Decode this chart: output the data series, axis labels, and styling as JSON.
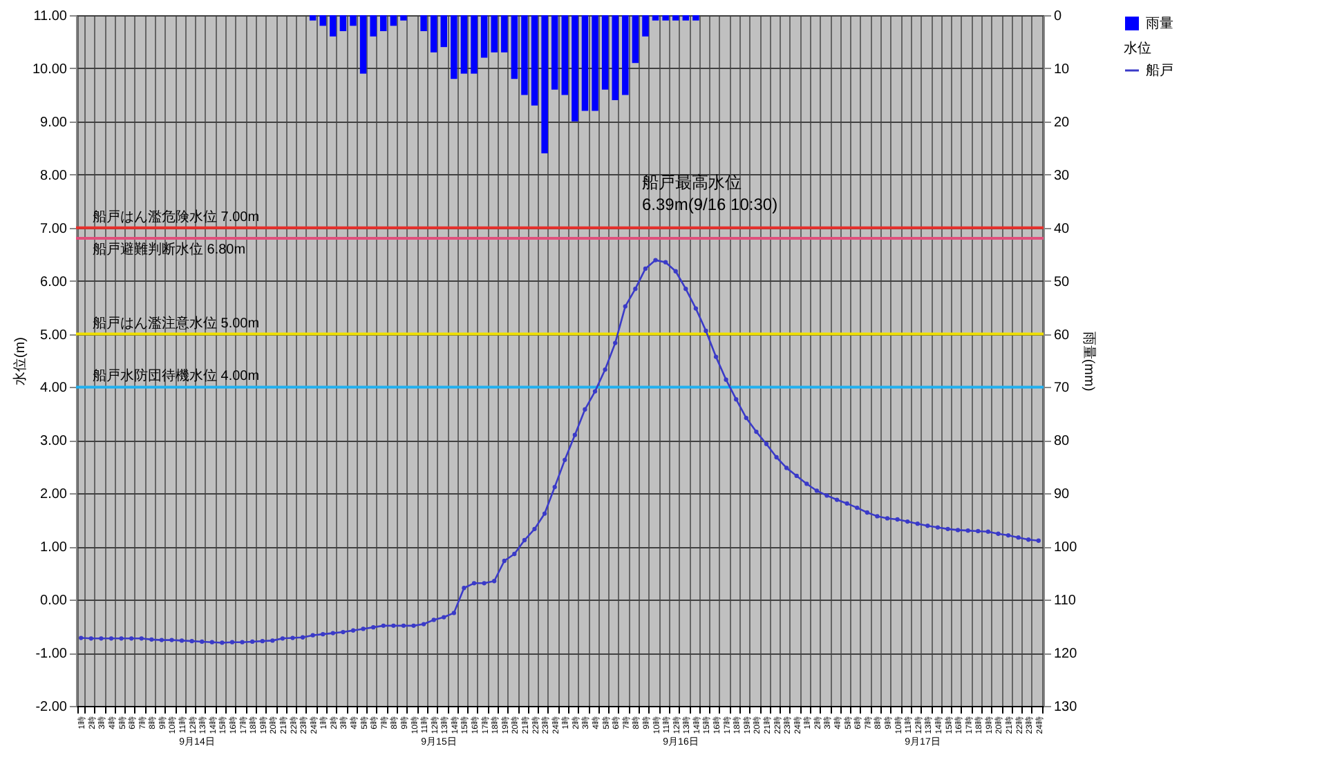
{
  "chart_data": {
    "type": "line",
    "xlabel": null,
    "ylabel": "水位(m)",
    "y2label": "雨量(mm)",
    "legend_title": "水位",
    "categories": [
      "1時",
      "2時",
      "3時",
      "4時",
      "5時",
      "6時",
      "7時",
      "8時",
      "9時",
      "10時",
      "11時",
      "12時",
      "13時",
      "14時",
      "15時",
      "16時",
      "17時",
      "18時",
      "19時",
      "20時",
      "21時",
      "22時",
      "23時",
      "24時",
      "1時",
      "2時",
      "3時",
      "4時",
      "5時",
      "6時",
      "7時",
      "8時",
      "9時",
      "10時",
      "11時",
      "12時",
      "13時",
      "14時",
      "15時",
      "16時",
      "17時",
      "18時",
      "19時",
      "20時",
      "21時",
      "22時",
      "23時",
      "24時",
      "1時",
      "2時",
      "3時",
      "4時",
      "5時",
      "6時",
      "7時",
      "8時",
      "9時",
      "10時",
      "11時",
      "12時",
      "13時",
      "14時",
      "15時",
      "16時",
      "17時",
      "18時",
      "19時",
      "20時",
      "21時",
      "22時",
      "23時",
      "24時",
      "1時",
      "2時",
      "3時",
      "4時",
      "5時",
      "6時",
      "7時",
      "8時",
      "9時",
      "10時",
      "11時",
      "12時",
      "13時",
      "14時",
      "15時",
      "16時",
      "17時",
      "18時",
      "19時",
      "20時",
      "21時",
      "22時",
      "23時",
      "24時"
    ],
    "series": [
      {
        "name": "雨量",
        "type": "bar",
        "axis": "y2",
        "color": "#0000ff",
        "values": [
          null,
          null,
          null,
          null,
          null,
          null,
          null,
          null,
          null,
          null,
          null,
          null,
          null,
          null,
          null,
          null,
          null,
          null,
          null,
          null,
          null,
          null,
          null,
          1,
          2,
          4,
          3,
          2,
          11,
          4,
          3,
          2,
          1,
          null,
          3,
          7,
          6,
          12,
          11,
          11,
          8,
          7,
          7,
          12,
          15,
          17,
          26,
          14,
          15,
          20,
          18,
          18,
          14,
          16,
          15,
          9,
          4,
          1,
          1,
          1,
          1,
          1,
          null,
          null,
          null,
          null,
          null,
          null,
          null,
          null,
          null,
          null,
          null,
          null,
          null,
          null,
          null,
          null,
          null,
          null,
          null,
          null,
          null,
          null,
          null,
          null,
          null,
          null,
          null,
          null,
          null,
          null,
          null,
          null,
          null,
          null
        ]
      },
      {
        "name": "船戸",
        "type": "line",
        "color": "#3a3ac8",
        "marker": "circle",
        "line_style": "solid",
        "values": [
          -0.72,
          -0.73,
          -0.73,
          -0.73,
          -0.73,
          -0.73,
          -0.73,
          -0.75,
          -0.76,
          -0.76,
          -0.77,
          -0.78,
          -0.79,
          -0.8,
          -0.81,
          -0.8,
          -0.8,
          -0.79,
          -0.78,
          -0.77,
          -0.73,
          -0.72,
          -0.71,
          -0.67,
          -0.65,
          -0.63,
          -0.61,
          -0.58,
          -0.55,
          -0.52,
          -0.49,
          -0.49,
          -0.49,
          -0.49,
          -0.46,
          -0.38,
          -0.33,
          -0.25,
          0.22,
          0.31,
          0.31,
          0.35,
          0.73,
          0.86,
          1.12,
          1.33,
          1.62,
          2.12,
          2.63,
          3.1,
          3.58,
          3.92,
          4.33,
          4.83,
          5.52,
          5.85,
          6.23,
          6.39,
          6.35,
          6.18,
          5.85,
          5.48,
          5.06,
          4.57,
          4.14,
          3.77,
          3.42,
          3.16,
          2.93,
          2.68,
          2.48,
          2.33,
          2.18,
          2.05,
          1.96,
          1.88,
          1.81,
          1.73,
          1.64,
          1.57,
          1.53,
          1.51,
          1.47,
          1.43,
          1.39,
          1.36,
          1.33,
          1.31,
          1.3,
          1.29,
          1.28,
          1.24,
          1.21,
          1.17,
          1.13,
          1.11
        ]
      }
    ],
    "ylim": [
      -2,
      11
    ],
    "yticks": [
      {
        "value": 11,
        "label": "11.00"
      },
      {
        "value": 10,
        "label": "10.00"
      },
      {
        "value": 9,
        "label": "9.00"
      },
      {
        "value": 8,
        "label": "8.00"
      },
      {
        "value": 7,
        "label": "7.00"
      },
      {
        "value": 6,
        "label": "6.00"
      },
      {
        "value": 5,
        "label": "5.00"
      },
      {
        "value": 4,
        "label": "4.00"
      },
      {
        "value": 3,
        "label": "3.00"
      },
      {
        "value": 2,
        "label": "2.00"
      },
      {
        "value": 1,
        "label": "1.00"
      },
      {
        "value": 0,
        "label": "0.00"
      },
      {
        "value": -1,
        "label": "-1.00"
      },
      {
        "value": -2,
        "label": "-2.00"
      }
    ],
    "y2lim": [
      130,
      0
    ],
    "y2ticks": [
      0,
      10,
      20,
      30,
      40,
      50,
      60,
      70,
      80,
      90,
      100,
      110,
      120,
      130
    ],
    "ref_lines": [
      {
        "axis": "y",
        "value": 7.0,
        "label": "船戸はん濫危険水位 7.00m",
        "color": "#e8302c"
      },
      {
        "axis": "y",
        "value": 6.8,
        "label": "船戸避難判断水位 6.80m",
        "color": "#e0507c"
      },
      {
        "axis": "y",
        "value": 5.0,
        "label": "船戸はん濫注意水位 5.00m",
        "color": "#f0e000"
      },
      {
        "axis": "y",
        "value": 4.0,
        "label": "船戸水防団待機水位 4.00m",
        "color": "#20b0f0"
      }
    ],
    "annotations": [
      "船戸最高水位\n6.39m(9/16 10:30)",
      "9月14日",
      "9月15日",
      "9月16日",
      "9月17日"
    ],
    "grid": true,
    "legend": "right"
  }
}
